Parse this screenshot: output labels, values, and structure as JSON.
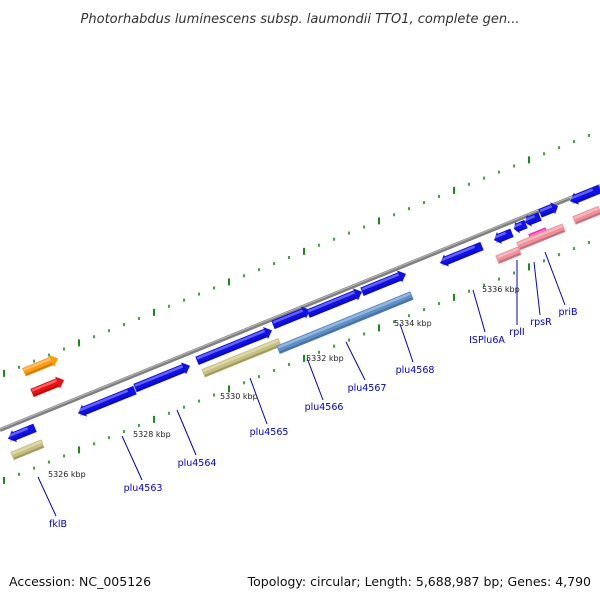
{
  "title": "Photorhabdus luminescens subsp. laumondii TTO1, complete gen...",
  "footer": {
    "accession": "Accession: NC_005126",
    "summary": "Topology: circular; Length: 5,688,987 bp; Genes: 4,790"
  },
  "colors": {
    "backbone": "#808080",
    "tick": "#1a8a1a",
    "label": "#0000cc",
    "blue": "#1010e8",
    "olive": "#c8c080",
    "steel": "#5d8fc8",
    "pink": "#f0909a",
    "magenta": "#ff1aa8",
    "orange": "#ff9a10",
    "red": "#ee1010"
  },
  "kbp_labels": [
    "5326 kbp",
    "5328 kbp",
    "5330 kbp",
    "5332 kbp",
    "5334 kbp",
    "5336 kbp"
  ],
  "gene_labels": [
    "fklB",
    "plu4563",
    "plu4564",
    "plu4565",
    "plu4566",
    "plu4567",
    "plu4568",
    "ISPlu6A",
    "rplI",
    "rpsR",
    "priB"
  ]
}
